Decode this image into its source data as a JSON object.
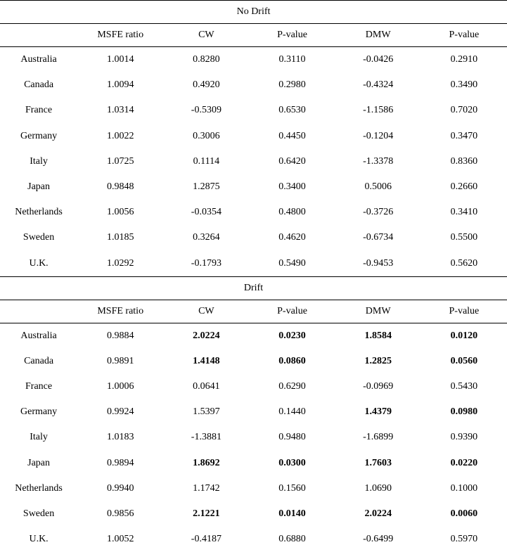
{
  "columns": [
    "MSFE ratio",
    "CW",
    "P-value",
    "DMW",
    "P-value"
  ],
  "sections": [
    {
      "title": "No Drift",
      "rows": [
        {
          "country": "Australia",
          "vals": [
            "1.0014",
            "0.8280",
            "0.3110",
            "-0.0426",
            "0.2910"
          ],
          "bold": [
            false,
            false,
            false,
            false,
            false
          ]
        },
        {
          "country": "Canada",
          "vals": [
            "1.0094",
            "0.4920",
            "0.2980",
            "-0.4324",
            "0.3490"
          ],
          "bold": [
            false,
            false,
            false,
            false,
            false
          ]
        },
        {
          "country": "France",
          "vals": [
            "1.0314",
            "-0.5309",
            "0.6530",
            "-1.1586",
            "0.7020"
          ],
          "bold": [
            false,
            false,
            false,
            false,
            false
          ]
        },
        {
          "country": "Germany",
          "vals": [
            "1.0022",
            "0.3006",
            "0.4450",
            "-0.1204",
            "0.3470"
          ],
          "bold": [
            false,
            false,
            false,
            false,
            false
          ]
        },
        {
          "country": "Italy",
          "vals": [
            "1.0725",
            "0.1114",
            "0.6420",
            "-1.3378",
            "0.8360"
          ],
          "bold": [
            false,
            false,
            false,
            false,
            false
          ]
        },
        {
          "country": "Japan",
          "vals": [
            "0.9848",
            "1.2875",
            "0.3400",
            "0.5006",
            "0.2660"
          ],
          "bold": [
            false,
            false,
            false,
            false,
            false
          ]
        },
        {
          "country": "Netherlands",
          "vals": [
            "1.0056",
            "-0.0354",
            "0.4800",
            "-0.3726",
            "0.3410"
          ],
          "bold": [
            false,
            false,
            false,
            false,
            false
          ]
        },
        {
          "country": "Sweden",
          "vals": [
            "1.0185",
            "0.3264",
            "0.4620",
            "-0.6734",
            "0.5500"
          ],
          "bold": [
            false,
            false,
            false,
            false,
            false
          ]
        },
        {
          "country": "U.K.",
          "vals": [
            "1.0292",
            "-0.1793",
            "0.5490",
            "-0.9453",
            "0.5620"
          ],
          "bold": [
            false,
            false,
            false,
            false,
            false
          ]
        }
      ]
    },
    {
      "title": "Drift",
      "rows": [
        {
          "country": "Australia",
          "vals": [
            "0.9884",
            "2.0224",
            "0.0230",
            "1.8584",
            "0.0120"
          ],
          "bold": [
            false,
            true,
            true,
            true,
            true
          ]
        },
        {
          "country": "Canada",
          "vals": [
            "0.9891",
            "1.4148",
            "0.0860",
            "1.2825",
            "0.0560"
          ],
          "bold": [
            false,
            true,
            true,
            true,
            true
          ]
        },
        {
          "country": "France",
          "vals": [
            "1.0006",
            "0.0641",
            "0.6290",
            "-0.0969",
            "0.5430"
          ],
          "bold": [
            false,
            false,
            false,
            false,
            false
          ]
        },
        {
          "country": "Germany",
          "vals": [
            "0.9924",
            "1.5397",
            "0.1440",
            "1.4379",
            "0.0980"
          ],
          "bold": [
            false,
            false,
            false,
            true,
            true
          ]
        },
        {
          "country": "Italy",
          "vals": [
            "1.0183",
            "-1.3881",
            "0.9480",
            "-1.6899",
            "0.9390"
          ],
          "bold": [
            false,
            false,
            false,
            false,
            false
          ]
        },
        {
          "country": "Japan",
          "vals": [
            "0.9894",
            "1.8692",
            "0.0300",
            "1.7603",
            "0.0220"
          ],
          "bold": [
            false,
            true,
            true,
            true,
            true
          ]
        },
        {
          "country": "Netherlands",
          "vals": [
            "0.9940",
            "1.1742",
            "0.1560",
            "1.0690",
            "0.1000"
          ],
          "bold": [
            false,
            false,
            false,
            false,
            false
          ]
        },
        {
          "country": "Sweden",
          "vals": [
            "0.9856",
            "2.1221",
            "0.0140",
            "2.0224",
            "0.0060"
          ],
          "bold": [
            false,
            true,
            true,
            true,
            true
          ]
        },
        {
          "country": "U.K.",
          "vals": [
            "1.0052",
            "-0.4187",
            "0.6880",
            "-0.6499",
            "0.5970"
          ],
          "bold": [
            false,
            false,
            false,
            false,
            false
          ]
        }
      ]
    }
  ]
}
